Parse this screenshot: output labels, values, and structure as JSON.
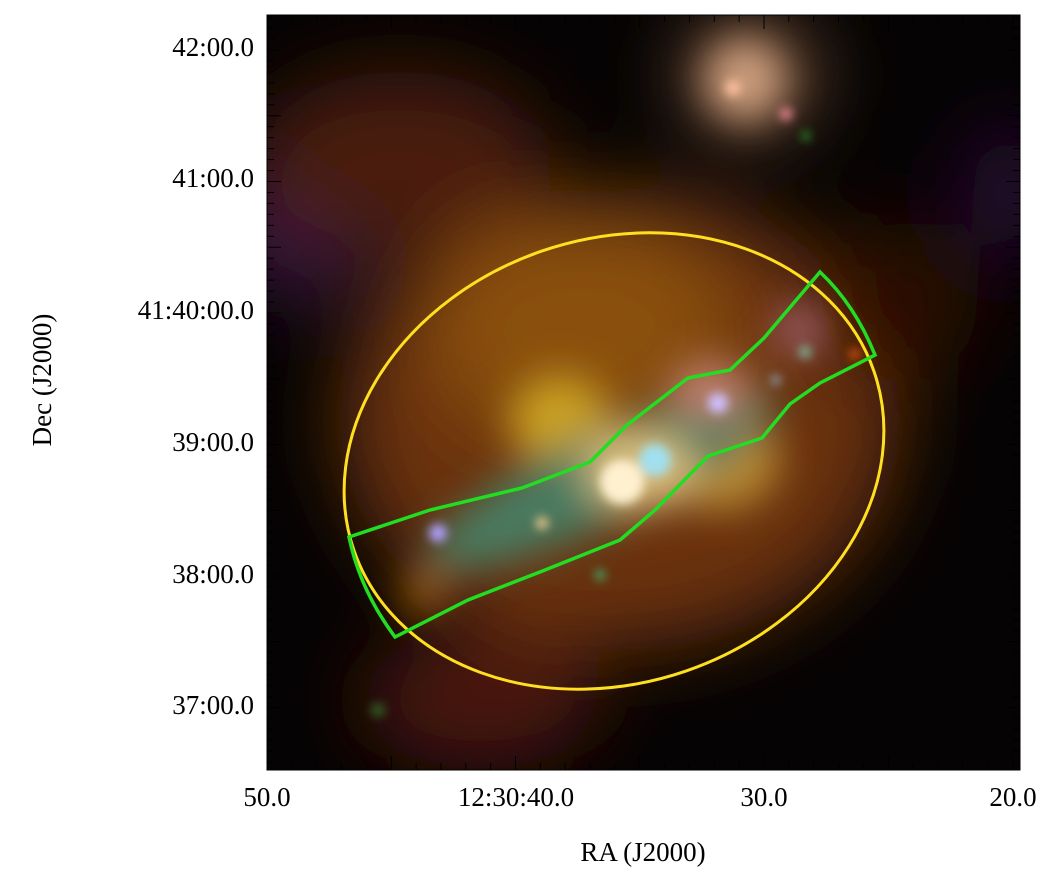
{
  "x_axis": {
    "label": "RA (J2000)",
    "ticks": [
      "50.0",
      "12:30:40.0",
      "30.0",
      "20.0"
    ]
  },
  "y_axis": {
    "label": "Dec (J2000)",
    "ticks": [
      "42:00.0",
      "41:00.0",
      "41:40:00.0",
      "39:00.0",
      "38:00.0",
      "37:00.0"
    ]
  }
}
